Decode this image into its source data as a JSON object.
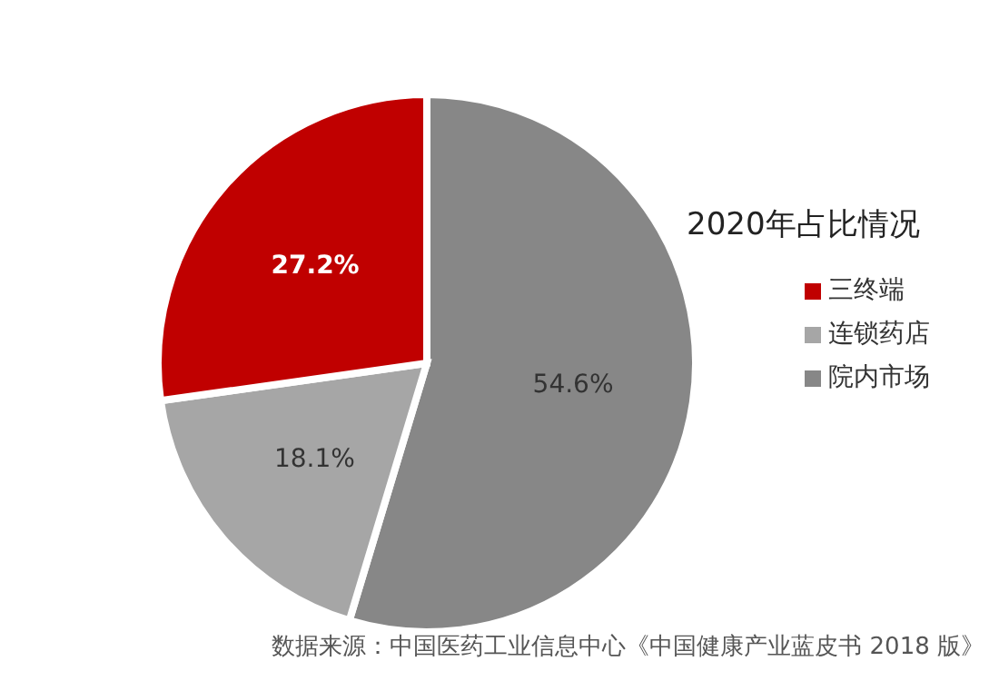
{
  "chart_data": {
    "type": "pie",
    "legend_title": "2020年占比情况",
    "categories": [
      "院内市场",
      "连锁药店",
      "三终端"
    ],
    "values": [
      54.6,
      18.1,
      27.2
    ],
    "colors": [
      "#878787",
      "#a6a6a6",
      "#c00000"
    ],
    "value_labels": [
      "54.6%",
      "18.1%",
      "27.2%"
    ],
    "legend": "right",
    "annotations": [
      "数据来源：中国医药工业信息中心《中国健康产业蓝皮书 2018 版》"
    ]
  }
}
